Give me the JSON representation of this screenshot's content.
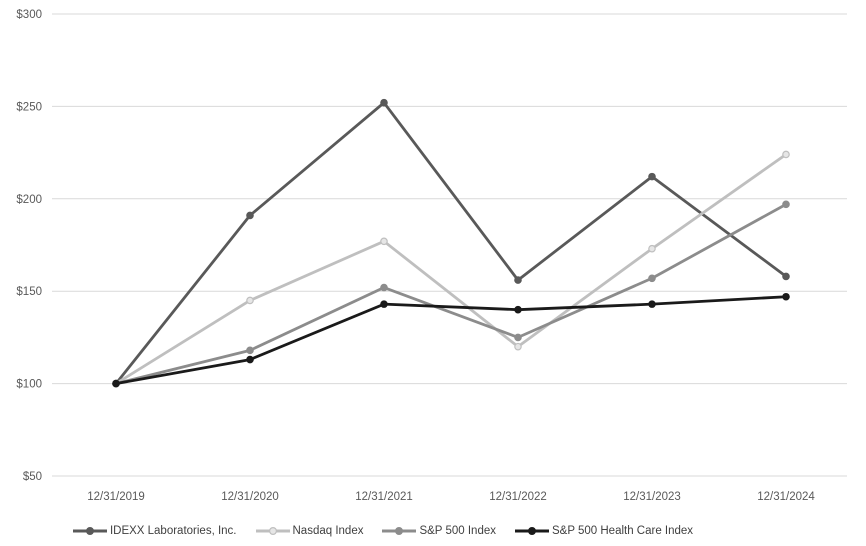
{
  "chart_data": {
    "type": "line",
    "title": "",
    "xlabel": "",
    "ylabel": "",
    "x": [
      "12/31/2019",
      "12/31/2020",
      "12/31/2021",
      "12/31/2022",
      "12/31/2023",
      "12/31/2024"
    ],
    "series": [
      {
        "name": "IDEXX Laboratories, Inc.",
        "values": [
          100,
          191,
          252,
          156,
          212,
          158
        ],
        "color": "#595959",
        "marker_fill": "#595959"
      },
      {
        "name": "Nasdaq Index",
        "values": [
          100,
          145,
          177,
          120,
          173,
          224
        ],
        "color": "#BFBFBF",
        "marker_fill": "#E6E6E6"
      },
      {
        "name": "S&P 500 Index",
        "values": [
          100,
          118,
          152,
          125,
          157,
          197
        ],
        "color": "#8C8C8C",
        "marker_fill": "#8C8C8C"
      },
      {
        "name": "S&P 500 Health Care Index",
        "values": [
          100,
          113,
          143,
          140,
          143,
          147
        ],
        "color": "#1A1A1A",
        "marker_fill": "#1A1A1A"
      }
    ],
    "y_ticks": [
      "$300",
      "$250",
      "$200",
      "$150",
      "$100",
      "$50"
    ],
    "y_tick_values": [
      300,
      250,
      200,
      150,
      100,
      50
    ],
    "ylim": [
      50,
      300
    ],
    "grid": "horizontal",
    "legend_position": "bottom",
    "axis_text_color": "#595959",
    "gridline_color": "#D9D9D9",
    "background_color": "#FFFFFF"
  }
}
